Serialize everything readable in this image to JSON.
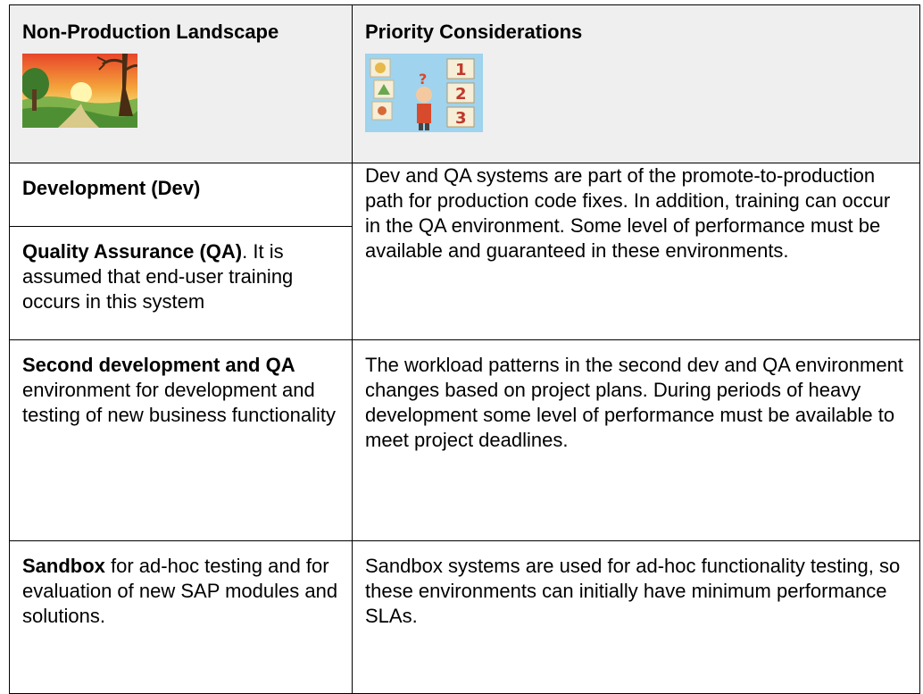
{
  "header": {
    "col1_title": "Non-Production Landscape",
    "col2_title": "Priority Considerations",
    "col1_image": "landscape-illustration",
    "col2_image": "priority-numbers-illustration",
    "colors": {
      "header_bg": "#efefef",
      "border": "#000000"
    }
  },
  "rows": {
    "dev": {
      "title": "Development (Dev)"
    },
    "qa": {
      "title": "Quality Assurance (QA)",
      "text": ".  It is assumed that end-user training occurs in this system"
    },
    "dev_qa_consideration": "Dev and QA systems are part of the promote-to-production path for production code fixes. In addition, training can occur in the QA environment. Some level of performance must be available and guaranteed in these environments.",
    "second": {
      "title": "Second development and QA",
      "text": " environment for development and testing of new business functionality",
      "consideration": "The workload patterns in the second dev and QA environment changes based on project plans. During periods of heavy development some level of performance must be available to meet project deadlines."
    },
    "sandbox": {
      "title": "Sandbox",
      "text": " for ad-hoc testing and for evaluation of new SAP modules and solutions.",
      "consideration": "Sandbox systems are used for ad-hoc functionality testing, so these environments can initially have minimum performance SLAs."
    }
  }
}
